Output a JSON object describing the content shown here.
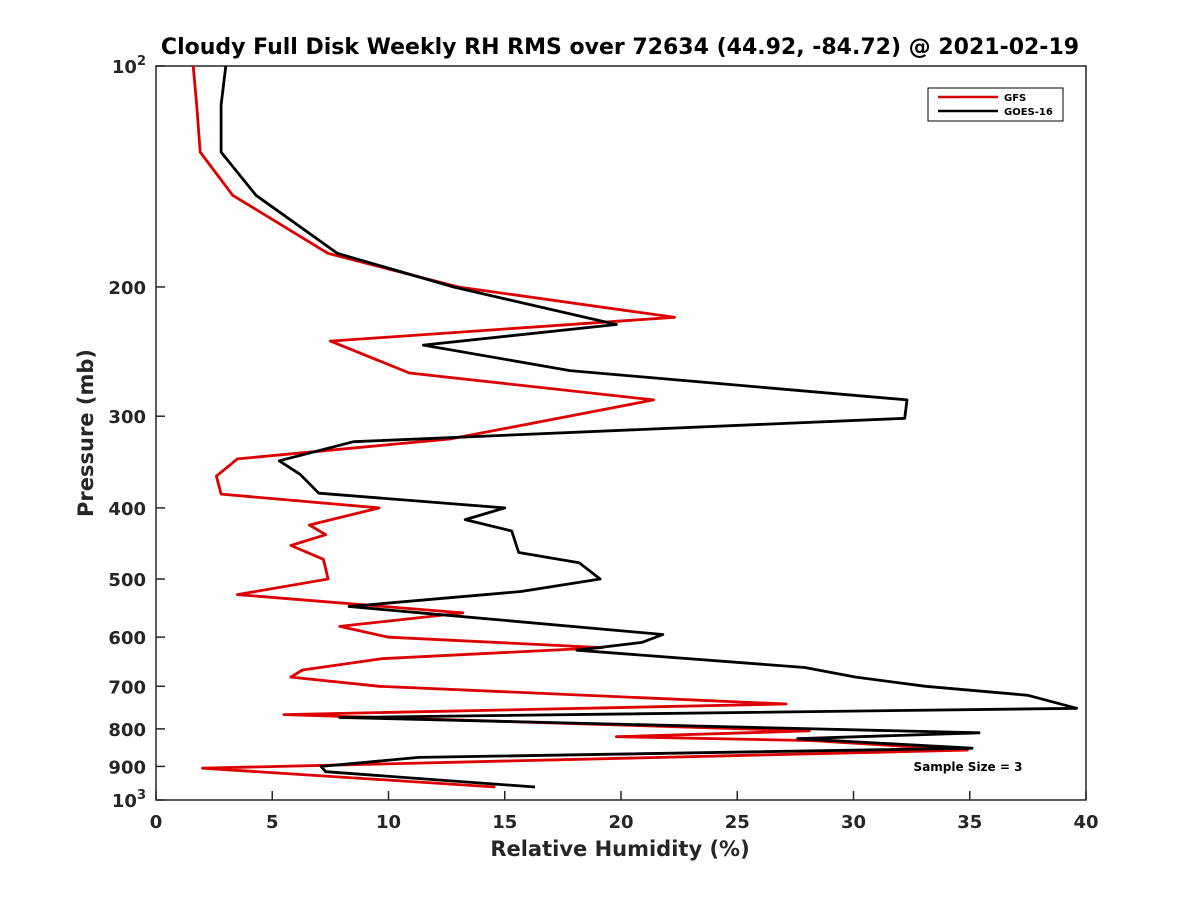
{
  "chart_data": {
    "type": "line",
    "title": "Cloudy Full Disk Weekly RH RMS over 72634 (44.92, -84.72) @ 2021-02-19",
    "xlabel": "Relative Humidity (%)",
    "ylabel": "Pressure (mb)",
    "xlim": [
      0,
      40
    ],
    "ylim": [
      100,
      1000
    ],
    "y_scale": "log",
    "y_reversed": true,
    "x_ticks": [
      0,
      5,
      10,
      15,
      20,
      25,
      30,
      35,
      40
    ],
    "y_ticks": [
      {
        "value": 100,
        "base": "10",
        "exp": "2"
      },
      {
        "value": 200,
        "label": "200"
      },
      {
        "value": 300,
        "label": "300"
      },
      {
        "value": 400,
        "label": "400"
      },
      {
        "value": 500,
        "label": "500"
      },
      {
        "value": 600,
        "label": "600"
      },
      {
        "value": 700,
        "label": "700"
      },
      {
        "value": 800,
        "label": "800"
      },
      {
        "value": 900,
        "label": "900"
      },
      {
        "value": 1000,
        "base": "10",
        "exp": "3"
      }
    ],
    "legend_position": "top-right",
    "annotation": "Sample Size = 3",
    "series": [
      {
        "name": "GFS",
        "color": "#dd0000",
        "points": [
          [
            1.6,
            100
          ],
          [
            1.75,
            113
          ],
          [
            1.9,
            131
          ],
          [
            3.3,
            150
          ],
          [
            7.4,
            180
          ],
          [
            13.0,
            200
          ],
          [
            22.3,
            220
          ],
          [
            7.5,
            237
          ],
          [
            10.9,
            262
          ],
          [
            21.4,
            285
          ],
          [
            12.7,
            322
          ],
          [
            3.5,
            343
          ],
          [
            2.6,
            362
          ],
          [
            2.8,
            383
          ],
          [
            9.6,
            400
          ],
          [
            6.6,
            422
          ],
          [
            7.3,
            435
          ],
          [
            5.8,
            450
          ],
          [
            7.2,
            470
          ],
          [
            7.4,
            500
          ],
          [
            3.5,
            525
          ],
          [
            13.2,
            556
          ],
          [
            7.9,
            580
          ],
          [
            10.0,
            600
          ],
          [
            19.2,
            620
          ],
          [
            9.7,
            642
          ],
          [
            6.3,
            665
          ],
          [
            5.8,
            680
          ],
          [
            9.6,
            700
          ],
          [
            27.1,
            740
          ],
          [
            5.5,
            765
          ],
          [
            28.1,
            805
          ],
          [
            19.8,
            820
          ],
          [
            28.2,
            830
          ],
          [
            34.9,
            855
          ],
          [
            2.0,
            905
          ],
          [
            14.6,
            960
          ]
        ]
      },
      {
        "name": "GOES-16",
        "color": "#000000",
        "points": [
          [
            3.0,
            100
          ],
          [
            2.8,
            113
          ],
          [
            2.8,
            131
          ],
          [
            4.3,
            150
          ],
          [
            7.8,
            180
          ],
          [
            12.8,
            200
          ],
          [
            19.8,
            225
          ],
          [
            11.5,
            240
          ],
          [
            17.8,
            260
          ],
          [
            32.3,
            285
          ],
          [
            32.2,
            302
          ],
          [
            8.5,
            325
          ],
          [
            5.3,
            345
          ],
          [
            6.2,
            360
          ],
          [
            7.0,
            382
          ],
          [
            15.0,
            400
          ],
          [
            13.3,
            415
          ],
          [
            15.3,
            430
          ],
          [
            15.6,
            460
          ],
          [
            18.2,
            475
          ],
          [
            19.1,
            500
          ],
          [
            15.7,
            520
          ],
          [
            8.3,
            545
          ],
          [
            12.5,
            560
          ],
          [
            21.8,
            595
          ],
          [
            20.9,
            610
          ],
          [
            18.1,
            625
          ],
          [
            27.9,
            660
          ],
          [
            30.1,
            680
          ],
          [
            33.1,
            700
          ],
          [
            37.5,
            720
          ],
          [
            39.6,
            750
          ],
          [
            7.9,
            772
          ],
          [
            35.4,
            810
          ],
          [
            27.6,
            825
          ],
          [
            35.1,
            850
          ],
          [
            11.3,
            875
          ],
          [
            7.1,
            900
          ],
          [
            7.3,
            915
          ],
          [
            16.3,
            960
          ]
        ]
      }
    ]
  }
}
